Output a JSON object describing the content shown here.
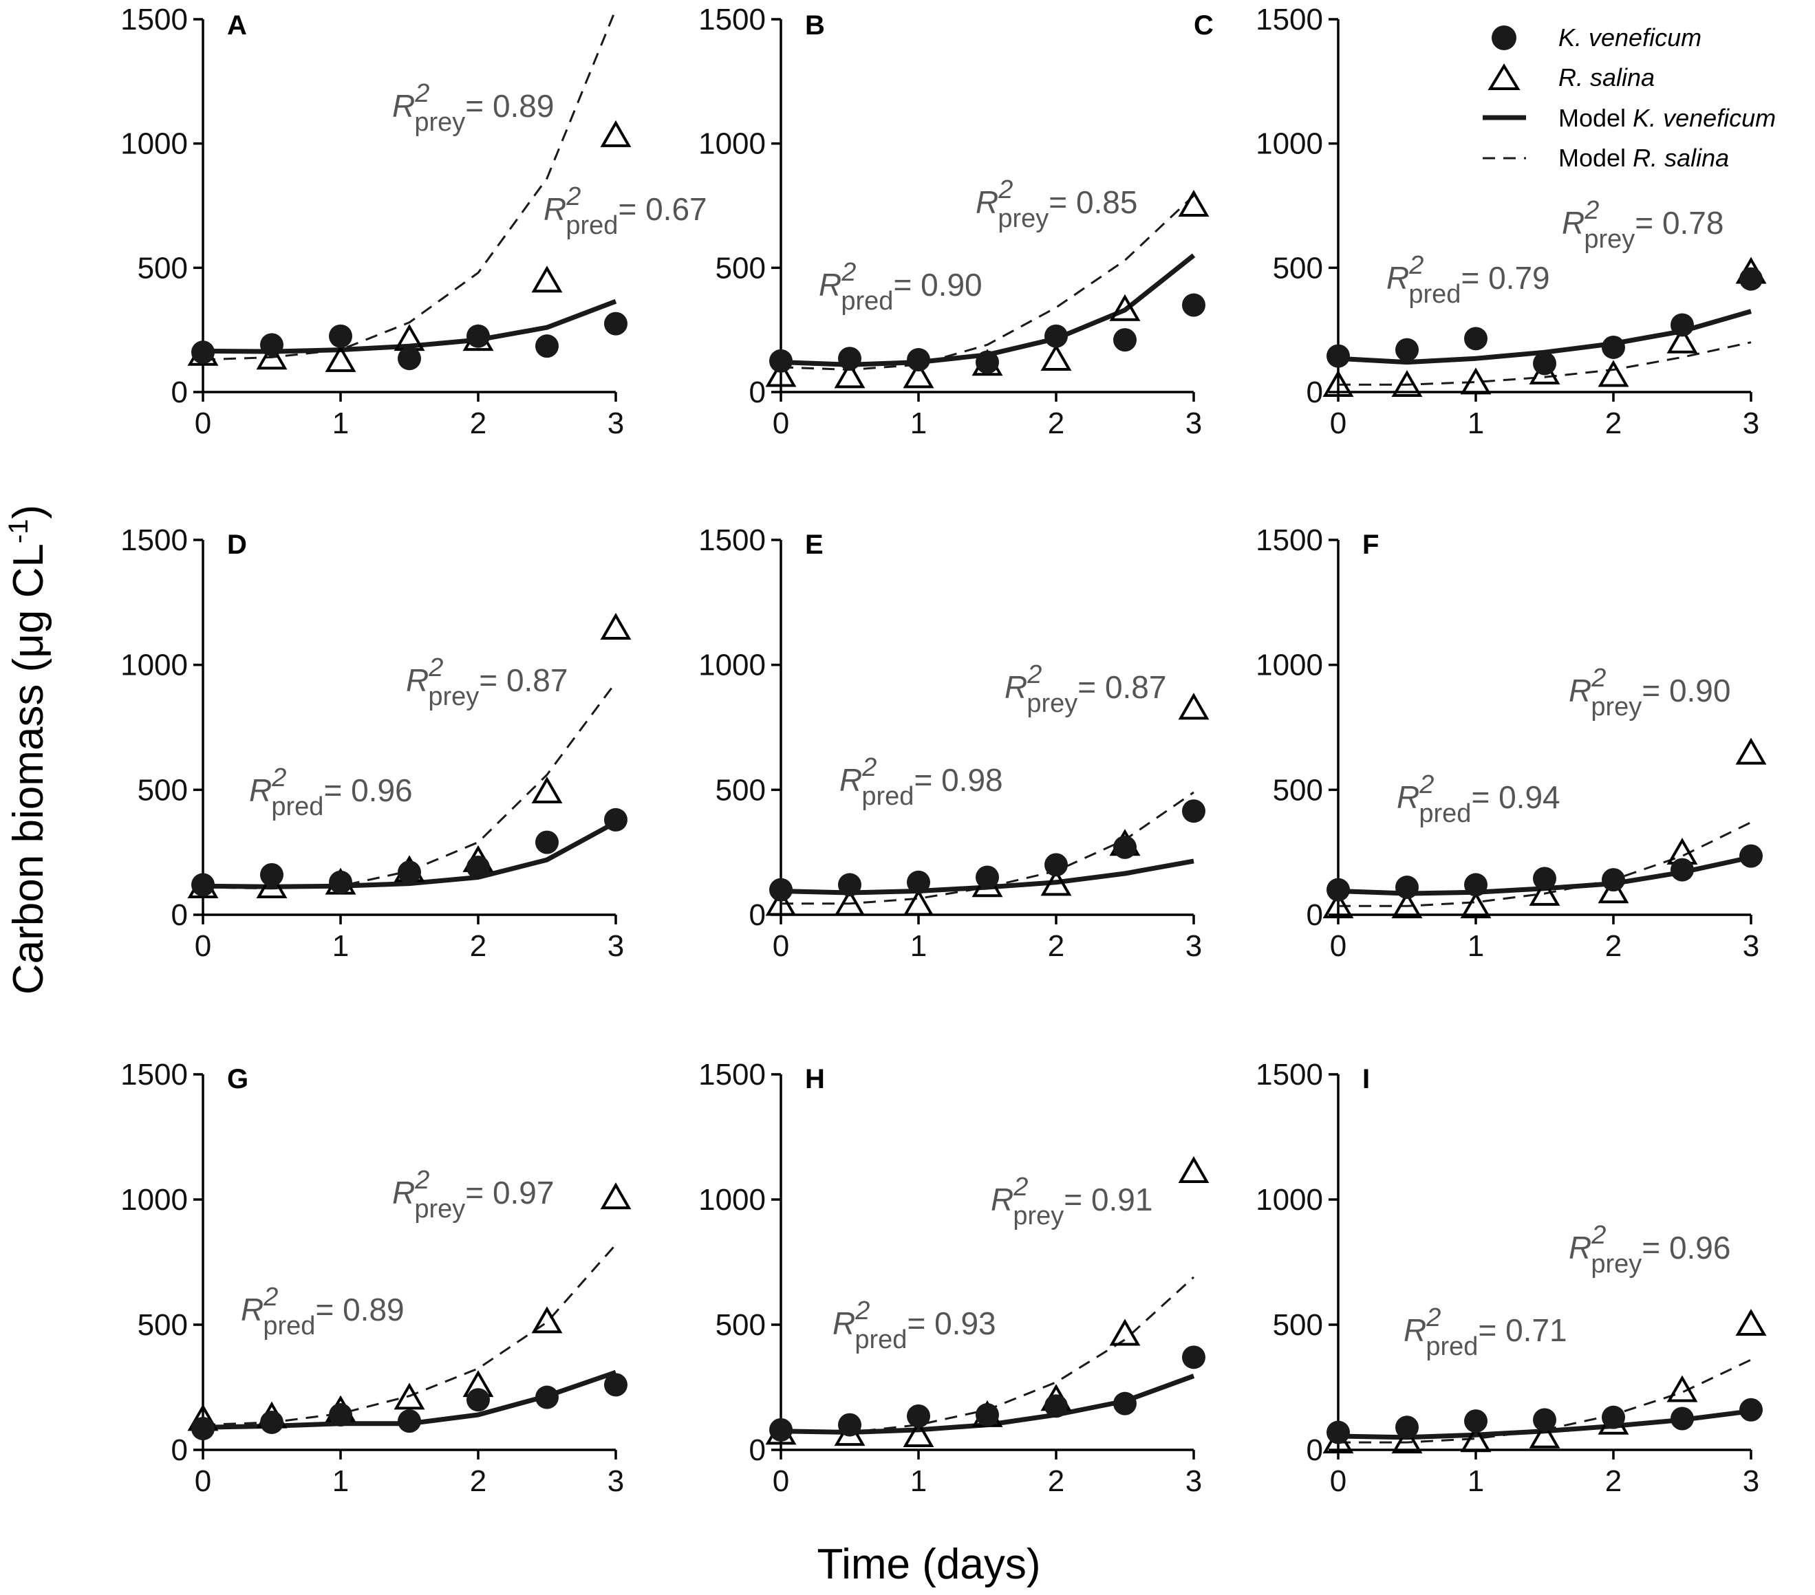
{
  "chart_data": {
    "type": "scatter",
    "figure_ylabel": "Carbon biomass (μg CL",
    "figure_ylabel_sup": "-1",
    "figure_ylabel_close": ")",
    "figure_xlabel": "Time (days)",
    "x_ticks": [
      0,
      1,
      2,
      3
    ],
    "y_ticks": [
      0,
      500,
      1000,
      1500
    ],
    "xlim": [
      0,
      3
    ],
    "ylim": [
      0,
      1500
    ],
    "legend": {
      "pred_points": "K. veneficum",
      "prey_points": "R. salina",
      "pred_model_prefix": "Model ",
      "pred_model_species": "K. veneficum",
      "prey_model_prefix": "Model ",
      "prey_model_species": "R. salina"
    },
    "x": [
      0,
      0.5,
      1,
      1.5,
      2,
      2.5,
      3
    ],
    "panels": [
      {
        "label": "A",
        "pred": [
          160,
          190,
          225,
          135,
          225,
          185,
          275
        ],
        "prey": [
          150,
          135,
          125,
          210,
          210,
          445,
          1030
        ],
        "model_pred": [
          [
            0,
            165
          ],
          [
            0.5,
            163
          ],
          [
            1,
            170
          ],
          [
            1.5,
            185
          ],
          [
            2,
            210
          ],
          [
            2.5,
            260
          ],
          [
            3,
            365
          ]
        ],
        "model_prey": [
          [
            0,
            130
          ],
          [
            0.5,
            140
          ],
          [
            1,
            170
          ],
          [
            1.5,
            280
          ],
          [
            2,
            480
          ],
          [
            2.5,
            860
          ],
          [
            3,
            1540
          ]
        ],
        "r2_pred": "0.67",
        "r2_prey": "0.89"
      },
      {
        "label": "B",
        "pred": [
          125,
          135,
          130,
          120,
          225,
          210,
          350
        ],
        "prey": [
          65,
          60,
          60,
          110,
          130,
          330,
          750
        ],
        "model_pred": [
          [
            0,
            120
          ],
          [
            0.5,
            110
          ],
          [
            1,
            120
          ],
          [
            1.5,
            150
          ],
          [
            2,
            215
          ],
          [
            2,
            215
          ],
          [
            2.5,
            330
          ],
          [
            3,
            550
          ]
        ],
        "model_prey": [
          [
            0,
            100
          ],
          [
            0.5,
            90
          ],
          [
            1,
            110
          ],
          [
            1.5,
            190
          ],
          [
            2,
            340
          ],
          [
            2.5,
            530
          ],
          [
            3,
            790
          ]
        ],
        "r2_pred": "0.90",
        "r2_prey": "0.85"
      },
      {
        "label": "C",
        "pred": [
          145,
          170,
          215,
          115,
          180,
          270,
          455
        ],
        "prey": [
          25,
          25,
          35,
          75,
          65,
          200,
          480
        ],
        "model_pred": [
          [
            0,
            135
          ],
          [
            0.5,
            120
          ],
          [
            1,
            135
          ],
          [
            1.5,
            160
          ],
          [
            2,
            195
          ],
          [
            2.5,
            245
          ],
          [
            3,
            325
          ]
        ],
        "model_prey": [
          [
            0,
            30
          ],
          [
            0.5,
            30
          ],
          [
            1,
            40
          ],
          [
            1,
            40
          ],
          [
            1.5,
            60
          ],
          [
            2,
            90
          ],
          [
            2.5,
            140
          ],
          [
            3,
            200
          ]
        ],
        "r2_pred": "0.79",
        "r2_prey": "0.78"
      },
      {
        "label": "D",
        "pred": [
          120,
          160,
          130,
          170,
          190,
          290,
          380
        ],
        "prey": [
          110,
          110,
          125,
          175,
          215,
          490,
          1145
        ],
        "model_pred": [
          [
            0,
            115
          ],
          [
            0.5,
            112
          ],
          [
            1,
            115
          ],
          [
            1.5,
            125
          ],
          [
            2,
            150
          ],
          [
            2.5,
            220
          ],
          [
            3,
            370
          ]
        ],
        "model_prey": [
          [
            0,
            110
          ],
          [
            0.5,
            105
          ],
          [
            1,
            115
          ],
          [
            1.5,
            175
          ],
          [
            2,
            290
          ],
          [
            2.5,
            560
          ],
          [
            3,
            930
          ]
        ],
        "r2_pred": "0.96",
        "r2_prey": "0.87"
      },
      {
        "label": "E",
        "pred": [
          100,
          120,
          130,
          150,
          200,
          270,
          415
        ],
        "prey": [
          40,
          40,
          40,
          115,
          120,
          280,
          825
        ],
        "model_pred": [
          [
            0,
            95
          ],
          [
            0.5,
            88
          ],
          [
            1,
            95
          ],
          [
            1.5,
            110
          ],
          [
            2,
            130
          ],
          [
            2.5,
            165
          ],
          [
            3,
            215
          ]
        ],
        "model_prey": [
          [
            0,
            45
          ],
          [
            0.5,
            45
          ],
          [
            1,
            65
          ],
          [
            1,
            65
          ],
          [
            1.5,
            110
          ],
          [
            2,
            175
          ],
          [
            2.5,
            300
          ],
          [
            3,
            490
          ]
        ],
        "r2_pred": "0.98",
        "r2_prey": "0.87"
      },
      {
        "label": "F",
        "pred": [
          100,
          110,
          120,
          145,
          140,
          180,
          235
        ],
        "prey": [
          30,
          30,
          30,
          80,
          90,
          245,
          645
        ],
        "model_pred": [
          [
            0,
            95
          ],
          [
            0.5,
            85
          ],
          [
            1,
            90
          ],
          [
            1.5,
            105
          ],
          [
            2,
            125
          ],
          [
            2.5,
            170
          ],
          [
            3,
            230
          ]
        ],
        "model_prey": [
          [
            0,
            35
          ],
          [
            0.5,
            35
          ],
          [
            1,
            50
          ],
          [
            1.5,
            85
          ],
          [
            2,
            140
          ],
          [
            2.5,
            235
          ],
          [
            3,
            370
          ]
        ],
        "r2_pred": "0.94",
        "r2_prey": "0.90"
      },
      {
        "label": "G",
        "pred": [
          85,
          110,
          140,
          115,
          200,
          210,
          260
        ],
        "prey": [
          120,
          130,
          155,
          205,
          255,
          510,
          1005
        ],
        "model_pred": [
          [
            0,
            90
          ],
          [
            0.5,
            95
          ],
          [
            1,
            105
          ],
          [
            1.5,
            105
          ],
          [
            2,
            140
          ],
          [
            2.5,
            215
          ],
          [
            3,
            310
          ]
        ],
        "model_prey": [
          [
            0,
            100
          ],
          [
            0.5,
            110
          ],
          [
            1,
            145
          ],
          [
            1.5,
            215
          ],
          [
            2,
            325
          ],
          [
            2.5,
            510
          ],
          [
            3,
            820
          ]
        ],
        "r2_pred": "0.89",
        "r2_prey": "0.97"
      },
      {
        "label": "H",
        "pred": [
          80,
          100,
          135,
          140,
          175,
          185,
          370
        ],
        "prey": [
          65,
          60,
          55,
          135,
          200,
          460,
          1110
        ],
        "model_pred": [
          [
            0,
            75
          ],
          [
            0.5,
            70
          ],
          [
            1,
            80
          ],
          [
            1.5,
            100
          ],
          [
            2,
            140
          ],
          [
            2.5,
            195
          ],
          [
            3,
            295
          ]
        ],
        "model_prey": [
          [
            0,
            75
          ],
          [
            0.5,
            70
          ],
          [
            1,
            100
          ],
          [
            1.5,
            160
          ],
          [
            2,
            270
          ],
          [
            2.5,
            440
          ],
          [
            3,
            690
          ]
        ],
        "r2_pred": "0.93",
        "r2_prey": "0.91"
      },
      {
        "label": "I",
        "pred": [
          70,
          90,
          115,
          120,
          130,
          125,
          160
        ],
        "prey": [
          30,
          30,
          35,
          50,
          105,
          235,
          500
        ],
        "model_pred": [
          [
            0,
            55
          ],
          [
            0.5,
            50
          ],
          [
            1,
            60
          ],
          [
            1.5,
            75
          ],
          [
            2,
            95
          ],
          [
            2.5,
            120
          ],
          [
            3,
            155
          ]
        ],
        "model_prey": [
          [
            0,
            30
          ],
          [
            0.5,
            30
          ],
          [
            1,
            45
          ],
          [
            1.5,
            80
          ],
          [
            2,
            140
          ],
          [
            2.5,
            230
          ],
          [
            3,
            360
          ]
        ],
        "r2_pred": "0.71",
        "r2_prey": "0.96"
      }
    ]
  }
}
